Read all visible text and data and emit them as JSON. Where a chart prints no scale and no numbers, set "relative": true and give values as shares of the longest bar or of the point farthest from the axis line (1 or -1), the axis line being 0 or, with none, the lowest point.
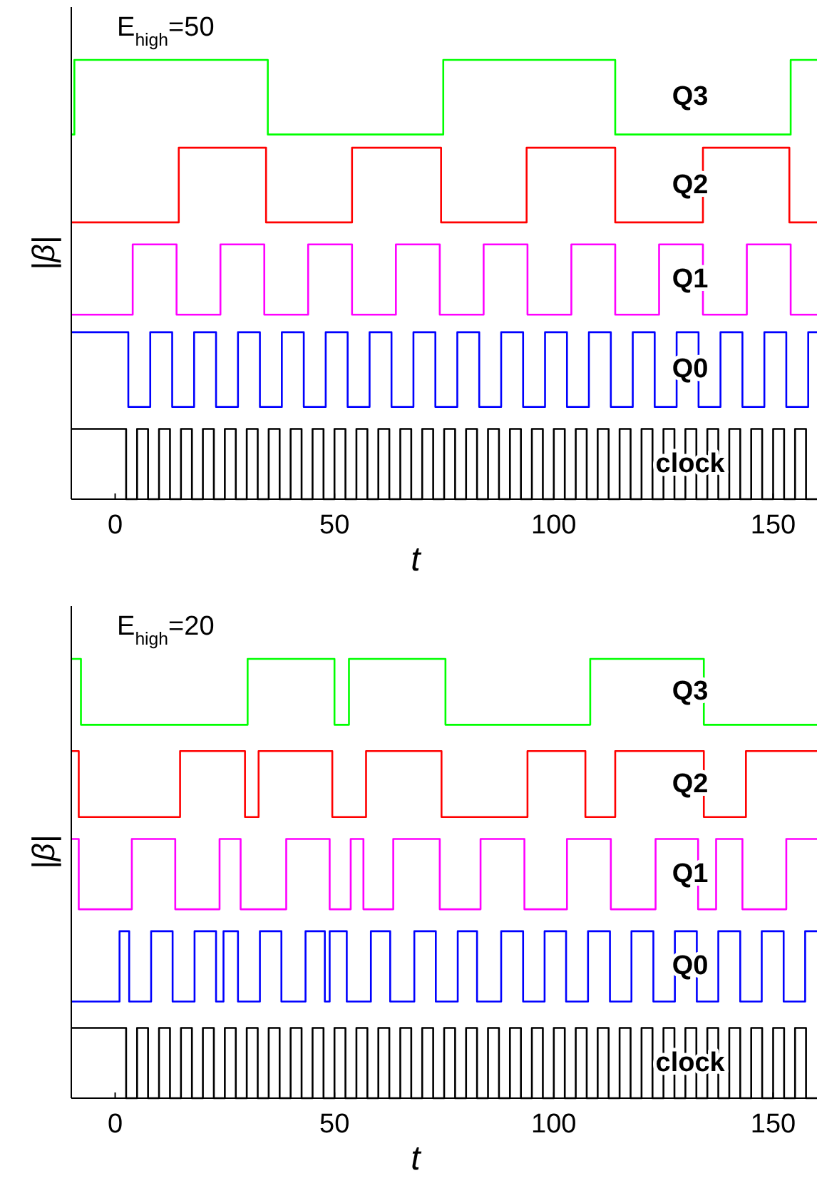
{
  "chart_data": [
    {
      "type": "step",
      "relative": true,
      "ylabel": "|β|",
      "xlabel": "t",
      "xlim": [
        -10,
        160
      ],
      "xticks": [
        0,
        50,
        100,
        150
      ],
      "annotations": [
        "E$_{high}$=50"
      ],
      "series": [
        {
          "name": "Q3",
          "color": "#00ff00",
          "x": [
            -10,
            -9.3,
            34.8,
            74.8,
            114,
            154,
            160
          ],
          "values": [
            0.83,
            1,
            0.83,
            1,
            0.83,
            1,
            1
          ]
        },
        {
          "name": "Q2",
          "color": "#ff0000",
          "x": [
            -10,
            14.5,
            34.4,
            54,
            74.3,
            93.8,
            114,
            134,
            153.7,
            160
          ],
          "values": [
            0.63,
            0.8,
            0.63,
            0.8,
            0.63,
            0.8,
            0.63,
            0.8,
            0.63,
            0.63
          ]
        },
        {
          "name": "Q1",
          "color": "#ff00ff",
          "x": [
            -10,
            4,
            14,
            24,
            34,
            44,
            54,
            64,
            74,
            84,
            94,
            104,
            114,
            124,
            134,
            144,
            154,
            160
          ],
          "values": [
            0.42,
            0.58,
            0.42,
            0.58,
            0.42,
            0.58,
            0.42,
            0.58,
            0.42,
            0.58,
            0.42,
            0.58,
            0.42,
            0.58,
            0.42,
            0.58,
            0.42,
            0.42
          ]
        },
        {
          "name": "Q0",
          "color": "#0000ff",
          "x": [
            -10,
            3,
            8,
            13,
            18,
            23,
            28,
            33,
            38,
            43,
            48,
            53,
            58,
            63,
            68,
            73,
            78,
            83,
            88,
            93,
            98,
            103,
            108,
            113,
            118,
            123,
            128,
            133,
            138,
            143,
            148,
            153,
            158,
            160
          ],
          "values": [
            0.38,
            0.21,
            0.38,
            0.21,
            0.38,
            0.21,
            0.38,
            0.21,
            0.38,
            0.21,
            0.38,
            0.21,
            0.38,
            0.21,
            0.38,
            0.21,
            0.38,
            0.21,
            0.38,
            0.21,
            0.38,
            0.21,
            0.38,
            0.21,
            0.38,
            0.21,
            0.38,
            0.21,
            0.38,
            0.21,
            0.38,
            0.21,
            0.38,
            0.38
          ]
        },
        {
          "name": "clock",
          "color": "#000000",
          "x": [
            -10,
            2.5,
            5,
            7.5,
            10,
            12.5,
            15,
            17.5,
            20,
            22.5,
            25,
            27.5,
            30,
            32.5,
            35,
            37.5,
            40,
            42.5,
            45,
            47.5,
            50,
            52.5,
            55,
            57.5,
            60,
            62.5,
            65,
            67.5,
            70,
            72.5,
            75,
            77.5,
            80,
            82.5,
            85,
            87.5,
            90,
            92.5,
            95,
            97.5,
            100,
            102.5,
            105,
            107.5,
            110,
            112.5,
            115,
            117.5,
            120,
            122.5,
            125,
            127.5,
            130,
            132.5,
            135,
            137.5,
            140,
            142.5,
            145,
            147.5,
            150,
            152.5,
            155,
            157.5,
            160
          ],
          "values": [
            0.16,
            0,
            0.16,
            0,
            0.16,
            0,
            0.16,
            0,
            0.16,
            0,
            0.16,
            0,
            0.16,
            0,
            0.16,
            0,
            0.16,
            0,
            0.16,
            0,
            0.16,
            0,
            0.16,
            0,
            0.16,
            0,
            0.16,
            0,
            0.16,
            0,
            0.16,
            0,
            0.16,
            0,
            0.16,
            0,
            0.16,
            0,
            0.16,
            0,
            0.16,
            0,
            0.16,
            0,
            0.16,
            0,
            0.16,
            0,
            0.16,
            0,
            0.16,
            0,
            0.16,
            0,
            0.16,
            0,
            0.16,
            0,
            0.16,
            0,
            0.16,
            0,
            0.16,
            0,
            0
          ]
        }
      ]
    },
    {
      "type": "step",
      "relative": true,
      "ylabel": "|β|",
      "xlabel": "t",
      "xlim": [
        -10,
        160
      ],
      "xticks": [
        0,
        50,
        100,
        150
      ],
      "annotations": [
        "E$_{high}$=20"
      ],
      "series": [
        {
          "name": "Q3",
          "color": "#00ff00",
          "x": [
            -10,
            -7.8,
            30.2,
            50,
            53.3,
            75.3,
            108.3,
            134.2,
            160
          ],
          "values": [
            1,
            0.85,
            1,
            0.85,
            1,
            0.85,
            1,
            0.85,
            0.85
          ]
        },
        {
          "name": "Q2",
          "color": "#ff0000",
          "x": [
            -10,
            -8.3,
            14.8,
            29.6,
            32.7,
            49.5,
            57.2,
            74.4,
            94,
            107.2,
            114,
            134.2,
            143.8,
            160
          ],
          "values": [
            0.79,
            0.64,
            0.79,
            0.64,
            0.79,
            0.64,
            0.79,
            0.64,
            0.79,
            0.64,
            0.79,
            0.64,
            0.79,
            0.79
          ]
        },
        {
          "name": "Q1",
          "color": "#ff00ff",
          "x": [
            -10,
            -8.3,
            3.8,
            13.7,
            23.8,
            28.6,
            39,
            48.9,
            53.7,
            56.6,
            63.4,
            74,
            83.3,
            93.3,
            103,
            113,
            123.2,
            132.9,
            137,
            143,
            153,
            160
          ],
          "values": [
            0.59,
            0.43,
            0.59,
            0.43,
            0.59,
            0.43,
            0.59,
            0.43,
            0.59,
            0.43,
            0.59,
            0.43,
            0.59,
            0.43,
            0.59,
            0.43,
            0.59,
            0.43,
            0.59,
            0.43,
            0.59,
            0.59
          ]
        },
        {
          "name": "Q0",
          "color": "#0000ff",
          "x": [
            -10,
            1,
            3.2,
            8.2,
            13.1,
            18.1,
            23,
            24.7,
            28,
            33,
            37.9,
            43.4,
            47.8,
            48.9,
            52.8,
            58.3,
            62.7,
            68.2,
            73.1,
            78.1,
            82.5,
            88,
            93,
            97.9,
            102.8,
            107.8,
            112.8,
            117.7,
            122.7,
            127.6,
            132.6,
            137.5,
            142.5,
            147.4,
            152.4,
            157.3,
            160
          ],
          "values": [
            0.22,
            0.38,
            0.22,
            0.38,
            0.22,
            0.38,
            0.22,
            0.38,
            0.22,
            0.38,
            0.22,
            0.38,
            0.22,
            0.38,
            0.22,
            0.38,
            0.22,
            0.38,
            0.22,
            0.38,
            0.22,
            0.38,
            0.22,
            0.38,
            0.22,
            0.38,
            0.22,
            0.38,
            0.22,
            0.38,
            0.22,
            0.38,
            0.22,
            0.38,
            0.22,
            0.38,
            0.38
          ]
        },
        {
          "name": "clock",
          "color": "#000000",
          "x": [
            -10,
            2.5,
            5,
            7.5,
            10,
            12.5,
            15,
            17.5,
            20,
            22.5,
            25,
            27.5,
            30,
            32.5,
            35,
            37.5,
            40,
            42.5,
            45,
            47.5,
            50,
            52.5,
            55,
            57.5,
            60,
            62.5,
            65,
            67.5,
            70,
            72.5,
            75,
            77.5,
            80,
            82.5,
            85,
            87.5,
            90,
            92.5,
            95,
            97.5,
            100,
            102.5,
            105,
            107.5,
            110,
            112.5,
            115,
            117.5,
            120,
            122.5,
            125,
            127.5,
            130,
            132.5,
            135,
            137.5,
            140,
            142.5,
            145,
            147.5,
            150,
            152.5,
            155,
            157.5,
            160
          ],
          "values": [
            0.16,
            0,
            0.16,
            0,
            0.16,
            0,
            0.16,
            0,
            0.16,
            0,
            0.16,
            0,
            0.16,
            0,
            0.16,
            0,
            0.16,
            0,
            0.16,
            0,
            0.16,
            0,
            0.16,
            0,
            0.16,
            0,
            0.16,
            0,
            0.16,
            0,
            0.16,
            0,
            0.16,
            0,
            0.16,
            0,
            0.16,
            0,
            0.16,
            0,
            0.16,
            0,
            0.16,
            0,
            0.16,
            0,
            0.16,
            0,
            0.16,
            0,
            0.16,
            0,
            0.16,
            0,
            0.16,
            0,
            0.16,
            0,
            0.16,
            0,
            0.16,
            0,
            0.16,
            0,
            0
          ]
        }
      ]
    }
  ]
}
